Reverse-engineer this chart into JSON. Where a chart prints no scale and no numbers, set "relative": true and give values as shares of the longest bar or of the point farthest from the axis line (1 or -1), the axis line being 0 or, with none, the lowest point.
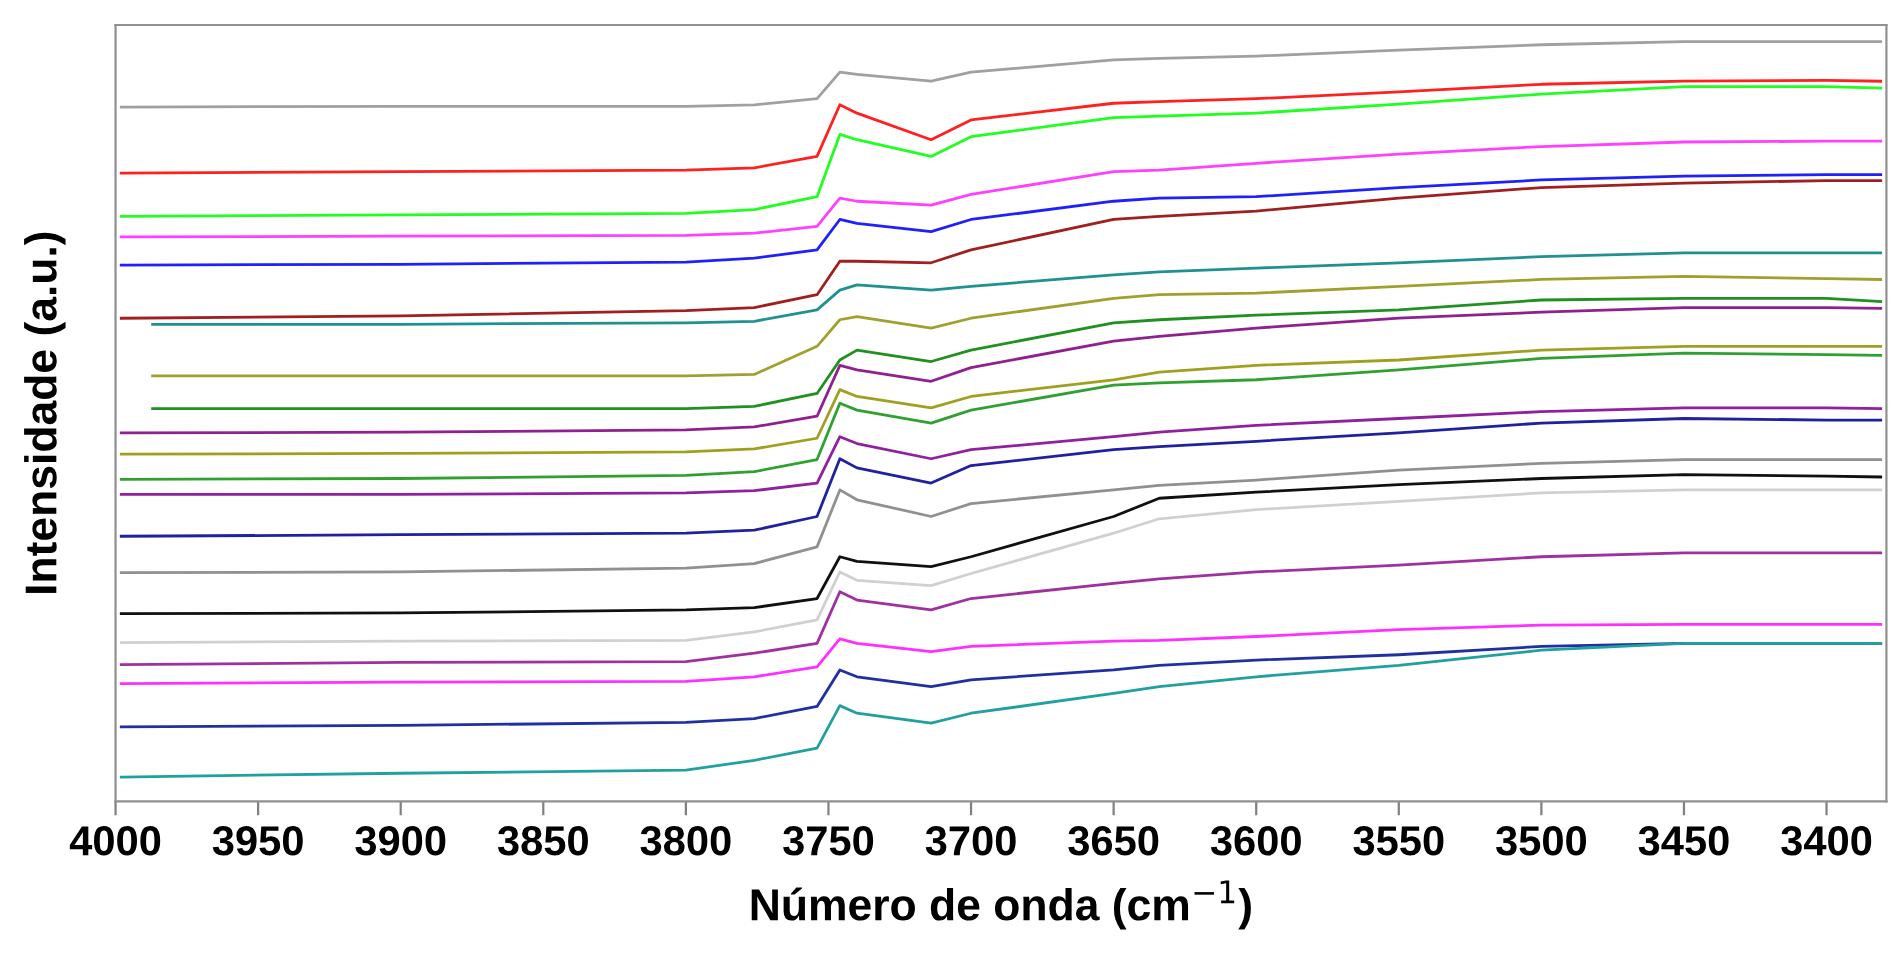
{
  "chart_data": {
    "type": "line",
    "relative": true,
    "xlabel": "Número de onda (cm$^{−1}$)",
    "ylabel": "Intensidade (a.u.)",
    "xlim": [
      4000,
      3379
    ],
    "xticks": [
      4000,
      3950,
      3900,
      3850,
      3800,
      3750,
      3700,
      3650,
      3600,
      3550,
      3500,
      3450,
      3400
    ],
    "grid": false,
    "tick_labels": "x",
    "marker": "none",
    "line_style": "solid",
    "x": [
      3998,
      3900,
      3800,
      3776,
      3754,
      3746,
      3740,
      3714,
      3700,
      3650,
      3634,
      3600,
      3550,
      3500,
      3450,
      3400,
      3381
    ],
    "series": [
      {
        "color": "#a0a0a0",
        "values": [
          0.914,
          0.915,
          0.915,
          0.917,
          0.925,
          0.96,
          0.957,
          0.948,
          0.96,
          0.976,
          0.978,
          0.981,
          0.989,
          0.996,
          1,
          1,
          1
        ]
      },
      {
        "color": "#ff2020",
        "values": [
          0.827,
          0.829,
          0.831,
          0.834,
          0.849,
          0.917,
          0.906,
          0.871,
          0.897,
          0.919,
          0.921,
          0.925,
          0.934,
          0.944,
          0.948,
          0.949,
          0.948
        ]
      },
      {
        "color": "#20ff20",
        "values": [
          0.77,
          0.772,
          0.774,
          0.779,
          0.796,
          0.878,
          0.871,
          0.849,
          0.875,
          0.9,
          0.902,
          0.906,
          0.918,
          0.931,
          0.941,
          0.941,
          0.939
        ]
      },
      {
        "color": "#ff40ff",
        "values": [
          0.743,
          0.744,
          0.745,
          0.748,
          0.757,
          0.794,
          0.79,
          0.785,
          0.799,
          0.829,
          0.831,
          0.84,
          0.852,
          0.862,
          0.868,
          0.869,
          0.869
        ]
      },
      {
        "color": "#2020ff",
        "values": [
          0.706,
          0.707,
          0.71,
          0.715,
          0.726,
          0.766,
          0.761,
          0.75,
          0.766,
          0.79,
          0.794,
          0.796,
          0.808,
          0.818,
          0.823,
          0.825,
          0.825
        ]
      },
      {
        "color": "#a02020",
        "values": [
          0.636,
          0.639,
          0.646,
          0.65,
          0.667,
          0.711,
          0.711,
          0.709,
          0.726,
          0.766,
          0.77,
          0.777,
          0.794,
          0.808,
          0.814,
          0.817,
          0.817
        ]
      },
      {
        "color": "#209090",
        "x": [
          3987,
          3900,
          3800,
          3776,
          3754,
          3746,
          3740,
          3714,
          3700,
          3650,
          3634,
          3600,
          3550,
          3500,
          3450,
          3400,
          3381
        ],
        "values": [
          0.628,
          0.628,
          0.63,
          0.632,
          0.647,
          0.673,
          0.68,
          0.673,
          0.678,
          0.693,
          0.697,
          0.702,
          0.709,
          0.717,
          0.722,
          0.722,
          0.722
        ]
      },
      {
        "color": "#a0a030",
        "x": [
          3987,
          3900,
          3800,
          3776,
          3754,
          3746,
          3740,
          3714,
          3700,
          3650,
          3634,
          3600,
          3550,
          3500,
          3450,
          3400,
          3381
        ],
        "values": [
          0.56,
          0.56,
          0.56,
          0.562,
          0.599,
          0.634,
          0.638,
          0.623,
          0.636,
          0.662,
          0.667,
          0.669,
          0.678,
          0.687,
          0.691,
          0.688,
          0.687
        ]
      },
      {
        "color": "#209020",
        "x": [
          3987,
          3900,
          3800,
          3776,
          3754,
          3746,
          3740,
          3714,
          3700,
          3650,
          3634,
          3600,
          3550,
          3500,
          3450,
          3400,
          3381
        ],
        "values": [
          0.517,
          0.517,
          0.517,
          0.52,
          0.537,
          0.581,
          0.594,
          0.579,
          0.594,
          0.63,
          0.634,
          0.64,
          0.647,
          0.66,
          0.662,
          0.662,
          0.658
        ]
      },
      {
        "color": "#902090",
        "values": [
          0.485,
          0.486,
          0.489,
          0.493,
          0.507,
          0.574,
          0.568,
          0.553,
          0.571,
          0.606,
          0.612,
          0.623,
          0.636,
          0.644,
          0.65,
          0.65,
          0.649
        ]
      },
      {
        "color": "#a0a020",
        "values": [
          0.457,
          0.458,
          0.46,
          0.464,
          0.478,
          0.542,
          0.533,
          0.518,
          0.533,
          0.555,
          0.565,
          0.574,
          0.581,
          0.594,
          0.599,
          0.599,
          0.599
        ]
      },
      {
        "color": "#30a030",
        "values": [
          0.424,
          0.425,
          0.429,
          0.434,
          0.45,
          0.524,
          0.515,
          0.498,
          0.515,
          0.548,
          0.551,
          0.555,
          0.568,
          0.583,
          0.59,
          0.588,
          0.587
        ]
      },
      {
        "color": "#9020a0",
        "values": [
          0.404,
          0.404,
          0.406,
          0.409,
          0.419,
          0.48,
          0.471,
          0.451,
          0.463,
          0.48,
          0.486,
          0.495,
          0.504,
          0.513,
          0.518,
          0.518,
          0.517
        ]
      },
      {
        "color": "#2020a0",
        "values": [
          0.349,
          0.351,
          0.353,
          0.357,
          0.375,
          0.451,
          0.439,
          0.419,
          0.442,
          0.463,
          0.467,
          0.474,
          0.485,
          0.498,
          0.504,
          0.502,
          0.502
        ]
      },
      {
        "color": "#909090",
        "values": [
          0.301,
          0.302,
          0.307,
          0.313,
          0.335,
          0.41,
          0.397,
          0.375,
          0.392,
          0.41,
          0.416,
          0.423,
          0.436,
          0.445,
          0.45,
          0.45,
          0.45
        ]
      },
      {
        "color": "#101010",
        "values": [
          0.247,
          0.248,
          0.252,
          0.255,
          0.267,
          0.322,
          0.316,
          0.309,
          0.322,
          0.375,
          0.399,
          0.407,
          0.417,
          0.425,
          0.43,
          0.428,
          0.427
        ]
      },
      {
        "color": "#d0d0d0",
        "values": [
          0.209,
          0.211,
          0.212,
          0.223,
          0.239,
          0.302,
          0.291,
          0.284,
          0.3,
          0.353,
          0.372,
          0.384,
          0.395,
          0.406,
          0.41,
          0.41,
          0.41
        ]
      },
      {
        "color": "#a030a0",
        "values": [
          0.18,
          0.183,
          0.184,
          0.195,
          0.208,
          0.276,
          0.265,
          0.252,
          0.267,
          0.287,
          0.293,
          0.302,
          0.311,
          0.322,
          0.327,
          0.327,
          0.327
        ]
      },
      {
        "color": "#ff30ff",
        "values": [
          0.155,
          0.157,
          0.158,
          0.164,
          0.177,
          0.214,
          0.208,
          0.197,
          0.204,
          0.211,
          0.212,
          0.217,
          0.226,
          0.232,
          0.233,
          0.233,
          0.233
        ]
      },
      {
        "color": "#2030a0",
        "values": [
          0.098,
          0.1,
          0.104,
          0.109,
          0.125,
          0.173,
          0.164,
          0.151,
          0.16,
          0.173,
          0.179,
          0.186,
          0.193,
          0.204,
          0.208,
          0.208,
          0.208
        ]
      },
      {
        "color": "#20a0a0",
        "values": [
          0.032,
          0.037,
          0.041,
          0.054,
          0.07,
          0.126,
          0.116,
          0.103,
          0.116,
          0.142,
          0.151,
          0.164,
          0.179,
          0.199,
          0.208,
          0.208,
          0.208
        ]
      }
    ]
  }
}
